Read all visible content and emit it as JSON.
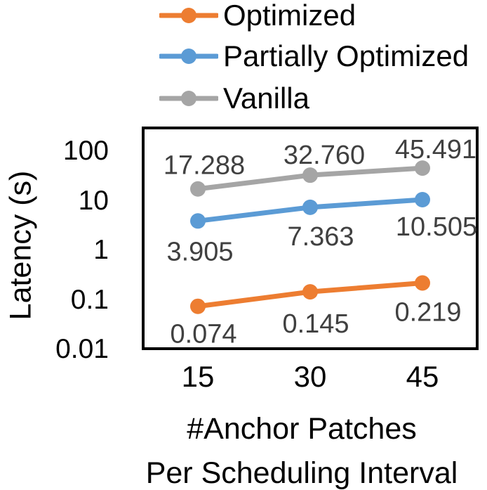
{
  "chart_data": {
    "type": "line",
    "x_categories": [
      "15",
      "30",
      "45"
    ],
    "series": [
      {
        "name": "Optimized",
        "color": "#ED7D31",
        "values": [
          0.074,
          0.145,
          0.219
        ],
        "point_labels": [
          "0.074",
          "0.145",
          "0.219"
        ],
        "label_position": "below"
      },
      {
        "name": "Partially Optimized",
        "color": "#5B9BD5",
        "values": [
          3.905,
          7.363,
          10.505
        ],
        "point_labels": [
          "3.905",
          "7.363",
          "10.505"
        ],
        "label_position": "below"
      },
      {
        "name": "Vanilla",
        "color": "#A5A5A5",
        "values": [
          17.288,
          32.76,
          45.491
        ],
        "point_labels": [
          "17.288",
          "32.760",
          "45.491"
        ],
        "label_position": "above"
      }
    ],
    "ylabel": "Latency (s)",
    "xlabel_lines": [
      "#Anchor Patches",
      "Per Scheduling Interval"
    ],
    "y_ticks": [
      "100",
      "10",
      "1",
      "0.1",
      "0.01"
    ],
    "y_scale": "log",
    "ylim": [
      0.01,
      300
    ],
    "legend_position": "top",
    "grid": false,
    "colors": {
      "data_label": "#404040",
      "axis_text": "#000000",
      "plot_border": "#000000",
      "background": "#FFFFFF"
    }
  }
}
